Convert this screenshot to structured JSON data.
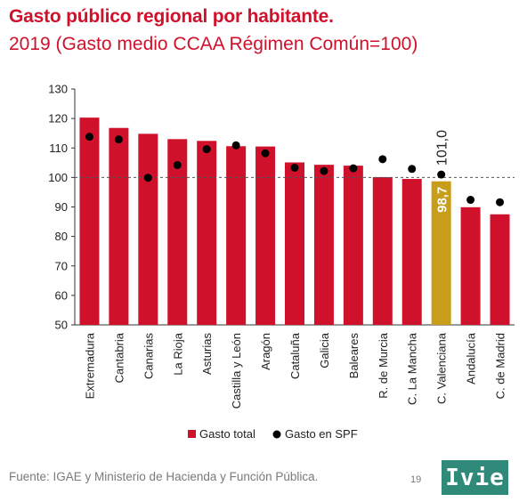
{
  "header": {
    "title": "Gasto público regional por habitante.",
    "subtitle": "2019 (Gasto medio CCAA Régimen Común=100)"
  },
  "footer": {
    "source": "Fuente: IGAE y Ministerio de Hacienda y Función Pública.",
    "page_number": "19",
    "logo_text": "Ivie"
  },
  "colors": {
    "bar": "#d0112b",
    "highlight_bar": "#c89d1a",
    "dot": "#000000",
    "reference_line": "#555555"
  },
  "chart_data": {
    "type": "bar",
    "categories": [
      "Extremadura",
      "Cantabria",
      "Canarias",
      "La Rioja",
      "Asturias",
      "Castilla y León",
      "Aragón",
      "Cataluña",
      "Galicia",
      "Baleares",
      "R. de Murcia",
      "C. La Mancha",
      "C. Valenciana",
      "Andalucía",
      "C. de Madrid"
    ],
    "series": [
      {
        "name": "Gasto total",
        "kind": "bar",
        "values": [
          120.3,
          116.8,
          114.8,
          113.0,
          112.4,
          110.6,
          110.5,
          105.1,
          104.3,
          104.0,
          100.1,
          99.5,
          98.7,
          89.9,
          87.5
        ]
      },
      {
        "name": "Gasto en SPF",
        "kind": "dot",
        "values": [
          113.8,
          112.9,
          99.9,
          104.2,
          109.6,
          110.9,
          108.2,
          103.3,
          102.2,
          103.1,
          106.2,
          102.9,
          101.0,
          92.4,
          91.6
        ]
      }
    ],
    "highlight_index": 12,
    "annotations": {
      "bar_label": "98,7",
      "dot_label": "101,0"
    },
    "reference_line": 100,
    "ylim": [
      50,
      130
    ],
    "yticks": [
      50,
      60,
      70,
      80,
      90,
      100,
      110,
      120,
      130
    ],
    "legend_position": "bottom",
    "xlabel": "",
    "ylabel": ""
  }
}
